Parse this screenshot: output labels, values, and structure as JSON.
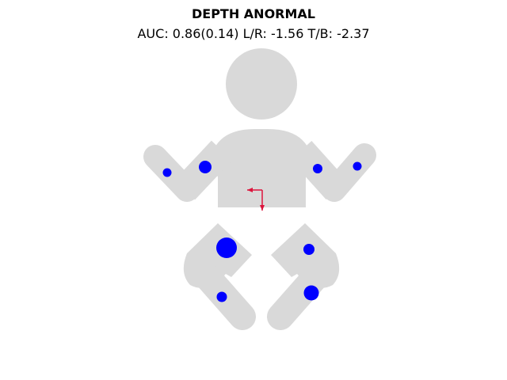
{
  "header": {
    "title": "DEPTH ANORMAL",
    "subtitle": "AUC: 0.86(0.14) L/R: -1.56 T/B: -2.37"
  },
  "colors": {
    "body": "#d9d9d9",
    "markers": "#0000ff",
    "arrows": "#dc143c",
    "background": "#ffffff"
  },
  "markers": [
    {
      "name": "marker-left-hand",
      "size": "small"
    },
    {
      "name": "marker-left-shoulder",
      "size": "medium"
    },
    {
      "name": "marker-right-shoulder",
      "size": "small"
    },
    {
      "name": "marker-right-hand",
      "size": "small"
    },
    {
      "name": "marker-left-hip",
      "size": "large"
    },
    {
      "name": "marker-left-foot",
      "size": "small"
    },
    {
      "name": "marker-right-hip",
      "size": "small"
    },
    {
      "name": "marker-right-knee",
      "size": "medium"
    }
  ],
  "balance": {
    "left_right": -1.56,
    "top_bottom": -2.37
  }
}
